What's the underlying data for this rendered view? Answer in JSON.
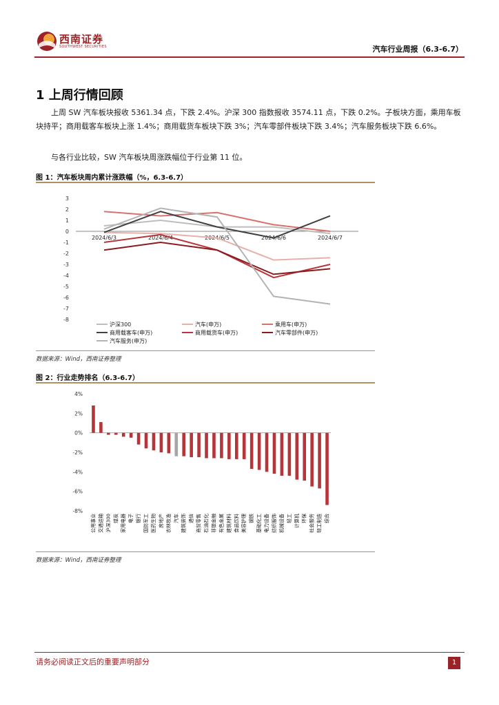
{
  "header": {
    "logo_name": "西南证券",
    "logo_sub": "SOUTHWEST SECURITIES",
    "report_title": "汽车行业周报（6.3-6.7）"
  },
  "section": {
    "title": "1  上周行情回顾"
  },
  "paragraphs": [
    "上周 SW 汽车板块报收 5361.34 点，下跌 2.4%。沪深 300 指数报收 3574.11 点，下跌 0.2%。子板块方面，乘用车板块持平；商用载客车板块上涨 1.4%；商用载货车板块下跌 3%；汽车零部件板块下跌 3.4%；汽车服务板块下跌 6.6%。",
    "与各行业比较，SW 汽车板块周涨跌幅位于行业第 11 位。"
  ],
  "figure1": {
    "title": "图 1：汽车板块周内累计涨跌幅（%，6.3-6.7）",
    "source": "数据来源：Wind，西南证券整理"
  },
  "figure2": {
    "title": "图 2：行业走势排名（6.3-6.7）",
    "source": "数据来源：Wind，西南证券整理"
  },
  "footer": {
    "disclaimer": "请务必阅读正文后的重要声明部分",
    "page": "1"
  },
  "colors": {
    "brand": "#9b2226",
    "hs300": "#bdbdbd",
    "auto": "#e8b0aa",
    "passenger": "#d9706c",
    "bus": "#404040",
    "truck": "#b5363a",
    "parts": "#8b1a1e",
    "service": "#b3b3b3",
    "bar": "#b5363a",
    "bar_highlight": "#a6a6a6"
  },
  "chart_data": [
    {
      "type": "line",
      "categories": [
        "2024/6/3",
        "2024/6/4",
        "2024/6/5",
        "2024/6/6",
        "2024/6/7"
      ],
      "ylim": [
        -8,
        3
      ],
      "yticks": [
        3,
        2,
        1,
        0,
        -1,
        -2,
        -3,
        -4,
        -5,
        -6,
        -7,
        -8
      ],
      "series": [
        {
          "name": "沪深300",
          "color_key": "hs300",
          "values": [
            0.5,
            1.0,
            0.4,
            0.4,
            -0.2
          ]
        },
        {
          "name": "汽车(申万)",
          "color_key": "auto",
          "values": [
            -0.1,
            -0.2,
            -0.6,
            -2.6,
            -2.4
          ]
        },
        {
          "name": "乘用车(申万)",
          "color_key": "passenger",
          "values": [
            1.8,
            1.4,
            1.7,
            0.6,
            0.0
          ]
        },
        {
          "name": "商用载客车(申万)",
          "color_key": "bus",
          "values": [
            -0.1,
            1.8,
            0.4,
            -0.6,
            1.4
          ]
        },
        {
          "name": "商用载货车(申万)",
          "color_key": "truck",
          "values": [
            -1.0,
            -0.3,
            -1.7,
            -4.2,
            -3.0
          ]
        },
        {
          "name": "汽车零部件(申万)",
          "color_key": "parts",
          "values": [
            -1.7,
            -1.0,
            -1.7,
            -3.9,
            -3.4
          ]
        },
        {
          "name": "汽车服务(申万)",
          "color_key": "service",
          "values": [
            0.2,
            2.1,
            1.3,
            -5.9,
            -6.6
          ]
        }
      ]
    },
    {
      "type": "bar",
      "ylim": [
        -8,
        4
      ],
      "yticks": [
        "4%",
        "2%",
        "0%",
        "-2%",
        "-4%",
        "-6%",
        "-8%"
      ],
      "ytick_values": [
        4,
        2,
        0,
        -2,
        -4,
        -6,
        -8
      ],
      "highlight": "汽车",
      "categories": [
        "公用事业",
        "交通运输",
        "沪深300",
        "煤炭",
        "家用电器",
        "电子",
        "银行",
        "国防军工",
        "医药生物",
        "房地产",
        "农林牧渔",
        "汽车",
        "建筑装饰",
        "通信",
        "商贸零售",
        "石油石化",
        "非银金融",
        "有色金属",
        "建筑材料",
        "食品饮料",
        "美容护理",
        "钢铁",
        "基础化工",
        "电力设备",
        "纺织服饰",
        "机械设备",
        "轻工",
        "计算机",
        "环保",
        "社会服务",
        "轻工制造",
        "综合"
      ],
      "values": [
        2.8,
        1.1,
        -0.2,
        -0.2,
        -0.4,
        -0.5,
        -1.2,
        -1.6,
        -1.8,
        -2.0,
        -2.1,
        -2.4,
        -2.4,
        -2.5,
        -2.5,
        -2.6,
        -2.6,
        -2.6,
        -2.7,
        -2.7,
        -2.7,
        -3.7,
        -3.8,
        -4.0,
        -4.2,
        -4.4,
        -4.4,
        -4.8,
        -4.9,
        -5.5,
        -5.7,
        -7.4
      ]
    }
  ]
}
